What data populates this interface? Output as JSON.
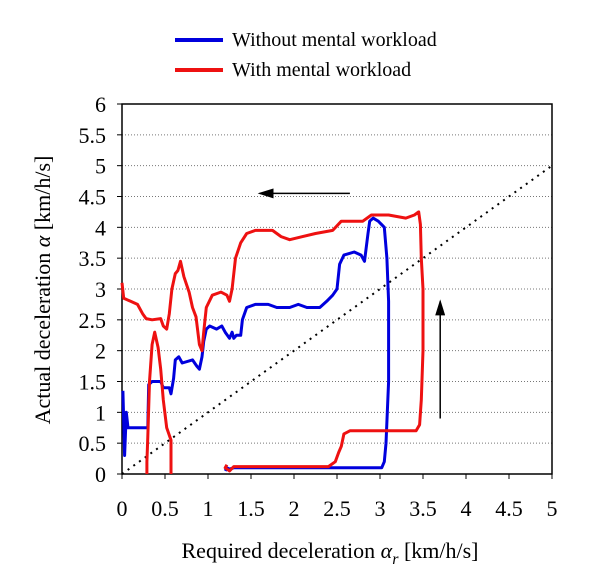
{
  "chart_data": {
    "type": "line",
    "xlabel": "Required deceleration",
    "xlabel_symbol": "α",
    "xlabel_subscript": "r",
    "xlabel_unit": "[km/h/s]",
    "ylabel": "Actual deceleration",
    "ylabel_symbol": "α",
    "ylabel_unit": "[km/h/s]",
    "xlim": [
      0,
      5
    ],
    "ylim": [
      0,
      6
    ],
    "xticks": [
      "0",
      "0.5",
      "1",
      "1.5",
      "2",
      "2.5",
      "3",
      "3.5",
      "4",
      "4.5",
      "5"
    ],
    "yticks": [
      "0",
      "0.5",
      "1",
      "1.5",
      "2",
      "2.5",
      "3",
      "3.5",
      "4",
      "4.5",
      "5",
      "5.5",
      "6"
    ],
    "grid": "horizontal dotted",
    "legend_position": "top",
    "series": [
      {
        "name": "Without mental workload",
        "color": "#0000dd",
        "points": [
          [
            0.01,
            1.35
          ],
          [
            0.03,
            0.3
          ],
          [
            0.05,
            1.0
          ],
          [
            0.07,
            0.75
          ],
          [
            0.3,
            0.75
          ],
          [
            0.31,
            1.45
          ],
          [
            0.35,
            1.5
          ],
          [
            0.45,
            1.5
          ],
          [
            0.48,
            1.4
          ],
          [
            0.55,
            1.4
          ],
          [
            0.57,
            1.3
          ],
          [
            0.6,
            1.55
          ],
          [
            0.62,
            1.85
          ],
          [
            0.66,
            1.9
          ],
          [
            0.7,
            1.8
          ],
          [
            0.82,
            1.85
          ],
          [
            0.87,
            1.75
          ],
          [
            0.9,
            1.7
          ],
          [
            0.93,
            1.9
          ],
          [
            0.95,
            2.15
          ],
          [
            0.98,
            2.35
          ],
          [
            1.02,
            2.4
          ],
          [
            1.1,
            2.35
          ],
          [
            1.16,
            2.4
          ],
          [
            1.2,
            2.3
          ],
          [
            1.25,
            2.2
          ],
          [
            1.28,
            2.3
          ],
          [
            1.3,
            2.2
          ],
          [
            1.33,
            2.25
          ],
          [
            1.38,
            2.25
          ],
          [
            1.4,
            2.5
          ],
          [
            1.45,
            2.7
          ],
          [
            1.55,
            2.75
          ],
          [
            1.7,
            2.75
          ],
          [
            1.8,
            2.7
          ],
          [
            1.95,
            2.7
          ],
          [
            2.05,
            2.75
          ],
          [
            2.15,
            2.7
          ],
          [
            2.3,
            2.7
          ],
          [
            2.38,
            2.8
          ],
          [
            2.45,
            2.9
          ],
          [
            2.5,
            3.0
          ],
          [
            2.53,
            3.4
          ],
          [
            2.58,
            3.55
          ],
          [
            2.7,
            3.6
          ],
          [
            2.78,
            3.55
          ],
          [
            2.82,
            3.45
          ],
          [
            2.86,
            3.9
          ],
          [
            2.88,
            4.1
          ],
          [
            2.92,
            4.15
          ],
          [
            2.98,
            4.1
          ],
          [
            3.05,
            4.0
          ],
          [
            3.08,
            3.5
          ],
          [
            3.1,
            2.8
          ],
          [
            3.1,
            1.5
          ],
          [
            3.07,
            0.5
          ],
          [
            3.05,
            0.2
          ],
          [
            3.02,
            0.1
          ],
          [
            2.6,
            0.1
          ],
          [
            2.0,
            0.1
          ],
          [
            1.5,
            0.1
          ],
          [
            1.3,
            0.1
          ],
          [
            1.25,
            0.08
          ],
          [
            1.22,
            0.1
          ],
          [
            1.2,
            0.05
          ]
        ]
      },
      {
        "name": "With mental workload",
        "color": "#ee1111",
        "points": [
          [
            0.0,
            3.1
          ],
          [
            0.02,
            2.85
          ],
          [
            0.1,
            2.8
          ],
          [
            0.18,
            2.75
          ],
          [
            0.24,
            2.6
          ],
          [
            0.28,
            2.52
          ],
          [
            0.35,
            2.5
          ],
          [
            0.45,
            2.52
          ],
          [
            0.48,
            2.4
          ],
          [
            0.52,
            2.35
          ],
          [
            0.55,
            2.6
          ],
          [
            0.58,
            3.0
          ],
          [
            0.62,
            3.25
          ],
          [
            0.65,
            3.3
          ],
          [
            0.68,
            3.45
          ],
          [
            0.72,
            3.2
          ],
          [
            0.78,
            2.95
          ],
          [
            0.82,
            2.7
          ],
          [
            0.86,
            2.55
          ],
          [
            0.9,
            2.1
          ],
          [
            0.93,
            2.0
          ],
          [
            0.95,
            2.3
          ],
          [
            0.98,
            2.7
          ],
          [
            1.05,
            2.9
          ],
          [
            1.15,
            2.95
          ],
          [
            1.22,
            2.9
          ],
          [
            1.25,
            2.8
          ],
          [
            1.28,
            3.0
          ],
          [
            1.32,
            3.5
          ],
          [
            1.38,
            3.75
          ],
          [
            1.45,
            3.9
          ],
          [
            1.55,
            3.95
          ],
          [
            1.75,
            3.95
          ],
          [
            1.85,
            3.85
          ],
          [
            1.95,
            3.8
          ],
          [
            2.1,
            3.85
          ],
          [
            2.25,
            3.9
          ],
          [
            2.45,
            3.95
          ],
          [
            2.55,
            4.1
          ],
          [
            2.8,
            4.1
          ],
          [
            2.9,
            4.2
          ],
          [
            3.1,
            4.2
          ],
          [
            3.3,
            4.15
          ],
          [
            3.4,
            4.2
          ],
          [
            3.45,
            4.25
          ],
          [
            3.47,
            4.05
          ],
          [
            3.48,
            3.5
          ],
          [
            3.5,
            3.0
          ],
          [
            3.5,
            2.0
          ],
          [
            3.48,
            1.2
          ],
          [
            3.46,
            0.8
          ],
          [
            3.42,
            0.7
          ],
          [
            2.65,
            0.7
          ],
          [
            2.58,
            0.65
          ],
          [
            2.55,
            0.45
          ],
          [
            2.52,
            0.35
          ],
          [
            2.48,
            0.2
          ],
          [
            2.4,
            0.12
          ],
          [
            1.8,
            0.12
          ],
          [
            1.3,
            0.12
          ],
          [
            1.25,
            0.05
          ],
          [
            1.2,
            0.1
          ],
          [
            1.22,
            0.15
          ],
          null,
          [
            0.57,
            0.0
          ],
          [
            0.57,
            0.55
          ],
          [
            0.52,
            0.75
          ],
          [
            0.48,
            1.2
          ],
          [
            0.45,
            1.7
          ],
          [
            0.42,
            2.05
          ],
          [
            0.38,
            2.3
          ],
          [
            0.35,
            2.1
          ],
          [
            0.32,
            1.5
          ],
          [
            0.3,
            0.6
          ],
          [
            0.29,
            0.2
          ],
          [
            0.29,
            0.0
          ]
        ]
      }
    ],
    "reference_line": {
      "style": "dotted black",
      "from": [
        0,
        0
      ],
      "to": [
        5,
        5
      ]
    },
    "arrows": [
      {
        "direction": "left",
        "from": [
          2.65,
          4.55
        ],
        "to": [
          1.6,
          4.55
        ]
      },
      {
        "direction": "up",
        "from": [
          3.7,
          0.9
        ],
        "to": [
          3.7,
          2.8
        ]
      }
    ]
  }
}
